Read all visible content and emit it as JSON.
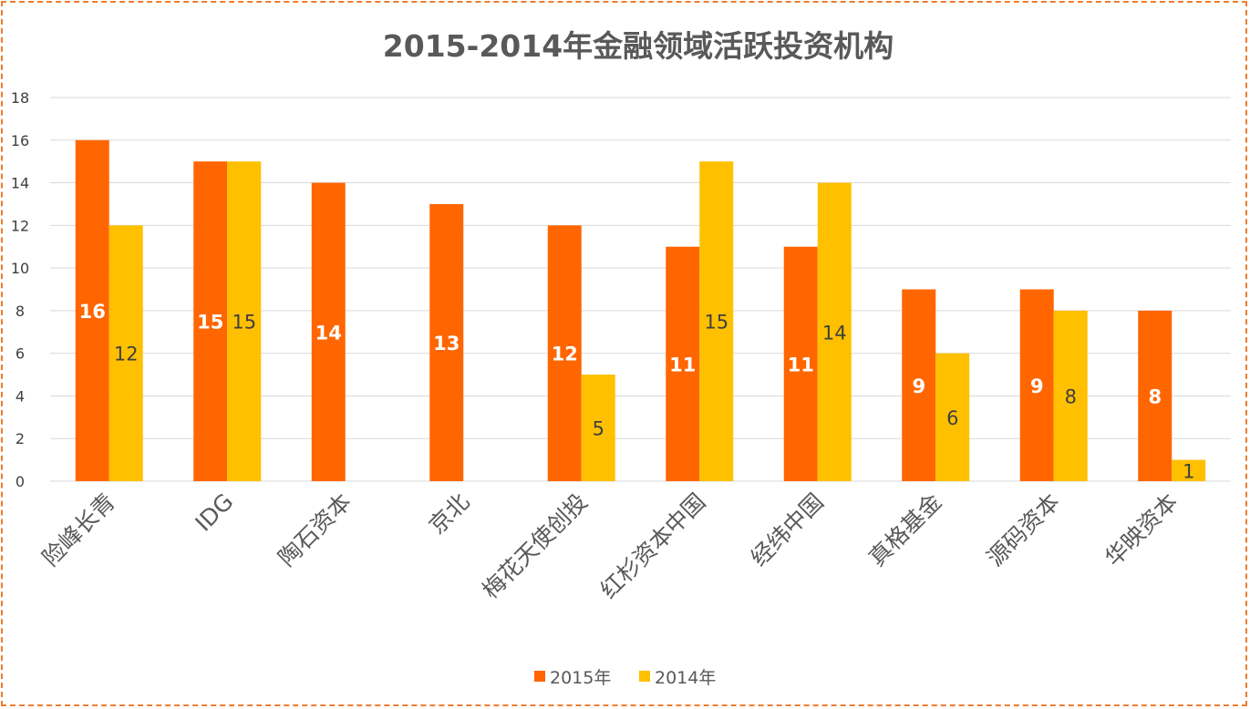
{
  "chart_data": {
    "type": "bar",
    "title": "2015-2014年金融领域活跃投资机构",
    "categories": [
      "险峰长青",
      "IDG",
      "陶石资本",
      "京北",
      "梅花天使创投",
      "红杉资本中国",
      "经纬中国",
      "真格基金",
      "源码资本",
      "华映资本"
    ],
    "series": [
      {
        "name": "2015年",
        "color": "#FF6600",
        "values": [
          16,
          15,
          14,
          13,
          12,
          11,
          11,
          9,
          9,
          8
        ]
      },
      {
        "name": "2014年",
        "color": "#FFC000",
        "values": [
          12,
          15,
          null,
          null,
          5,
          15,
          14,
          6,
          8,
          1
        ]
      }
    ],
    "xlabel": "",
    "ylabel": "",
    "ylim": [
      0,
      18
    ],
    "yticks": [
      0,
      2,
      4,
      6,
      8,
      10,
      12,
      14,
      16,
      18
    ],
    "grid": true,
    "legend": "bottom",
    "data_labels": true
  }
}
